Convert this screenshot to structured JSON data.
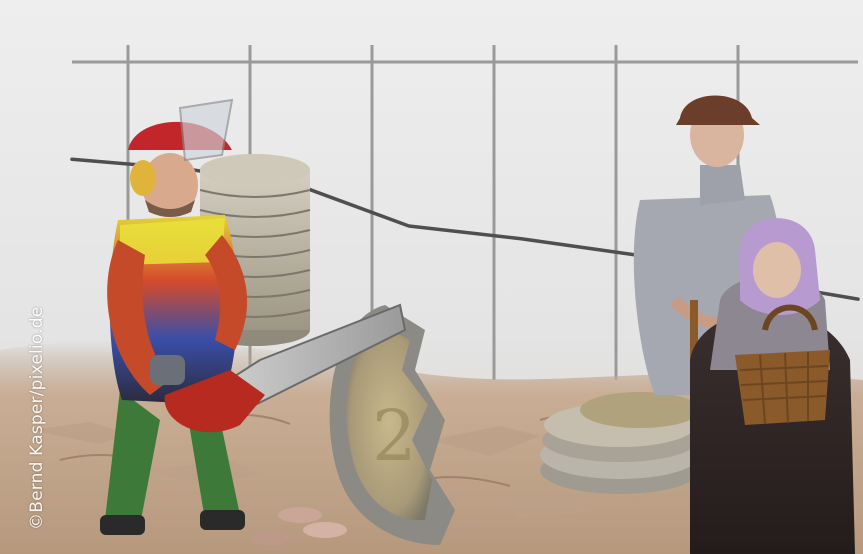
{
  "image": {
    "credit_text": "©Bernd Kasper/pixelio.de"
  },
  "chart_data": {
    "type": "line",
    "title": "",
    "xlabel": "",
    "ylabel": "",
    "ylim": [
      0,
      10
    ],
    "grid": true,
    "values": [
      8.2,
      7.9,
      7.4,
      6.1,
      5.7,
      5.2,
      4.4,
      3.8
    ]
  },
  "colors": {
    "background": "#e6e6e6",
    "grid": "#9a9a9a",
    "trend_line": "#4f4f4f",
    "coins": "#b9b19d",
    "soil": "#cfb49a",
    "helmet": "#c2262b",
    "vest": "#e9e23a",
    "chainsaw": "#b62a20",
    "old_man_coat": "#a5a8b1",
    "old_woman_scarf": "#b79ad0",
    "basket": "#8a5a2b"
  }
}
